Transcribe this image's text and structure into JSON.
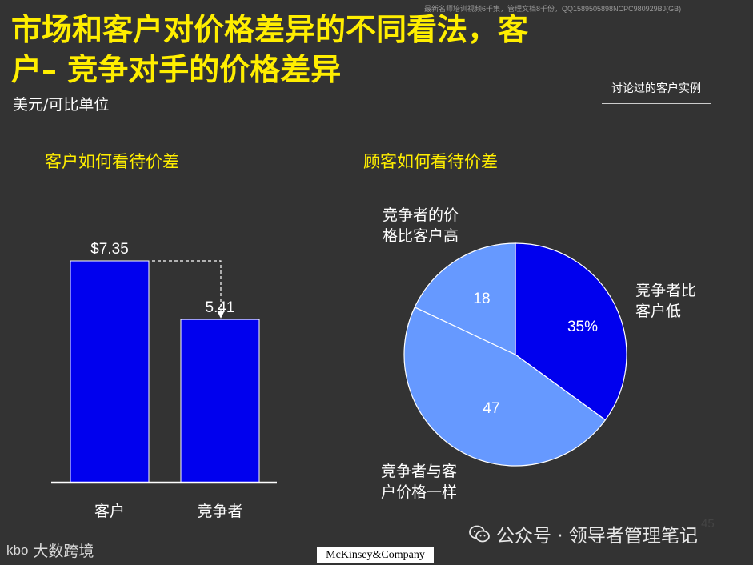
{
  "header": {
    "watermark": "最新名师培训视频6千集，管理文档8千份，QQ1589505898NCPC980929BJ(GB)",
    "title_line1": "市场和客户对价格差异的不同看法，客",
    "title_line2": "户– 竞争对手的价格差异",
    "unit": "美元/可比单位",
    "tag": "讨论过的客户实例"
  },
  "chart_data": [
    {
      "type": "bar",
      "title": "客户如何看待价差",
      "categories": [
        "客户",
        "竞争者"
      ],
      "values": [
        7.35,
        5.41
      ],
      "value_labels": [
        "$7.35",
        "5.41"
      ],
      "ylim": [
        0,
        7.35
      ],
      "colors": [
        "#0000ee",
        "#0000ee"
      ],
      "annotation": "dashed arrow from 客户 bar top to 竞争者 bar top"
    },
    {
      "type": "pie",
      "title": "顾客如何看待价差",
      "slices": [
        {
          "label": "竞争者比\n客户低",
          "value": 35,
          "value_label": "35%",
          "color": "#0000ee"
        },
        {
          "label": "竞争者与客\n户价格一样",
          "value": 47,
          "value_label": "47",
          "color": "#6699ff"
        },
        {
          "label": "竞争者的价\n格比客户高",
          "value": 18,
          "value_label": "18",
          "color": "#6699ff"
        }
      ]
    }
  ],
  "footer": {
    "page_number": "45",
    "wechat_text": "公众号 · 领导者管理笔记",
    "brand_mark": "kbo",
    "brand_text": "大数跨境",
    "mckinsey": "McKinsey&Company"
  },
  "icons": {
    "wechat": "wechat-icon"
  }
}
